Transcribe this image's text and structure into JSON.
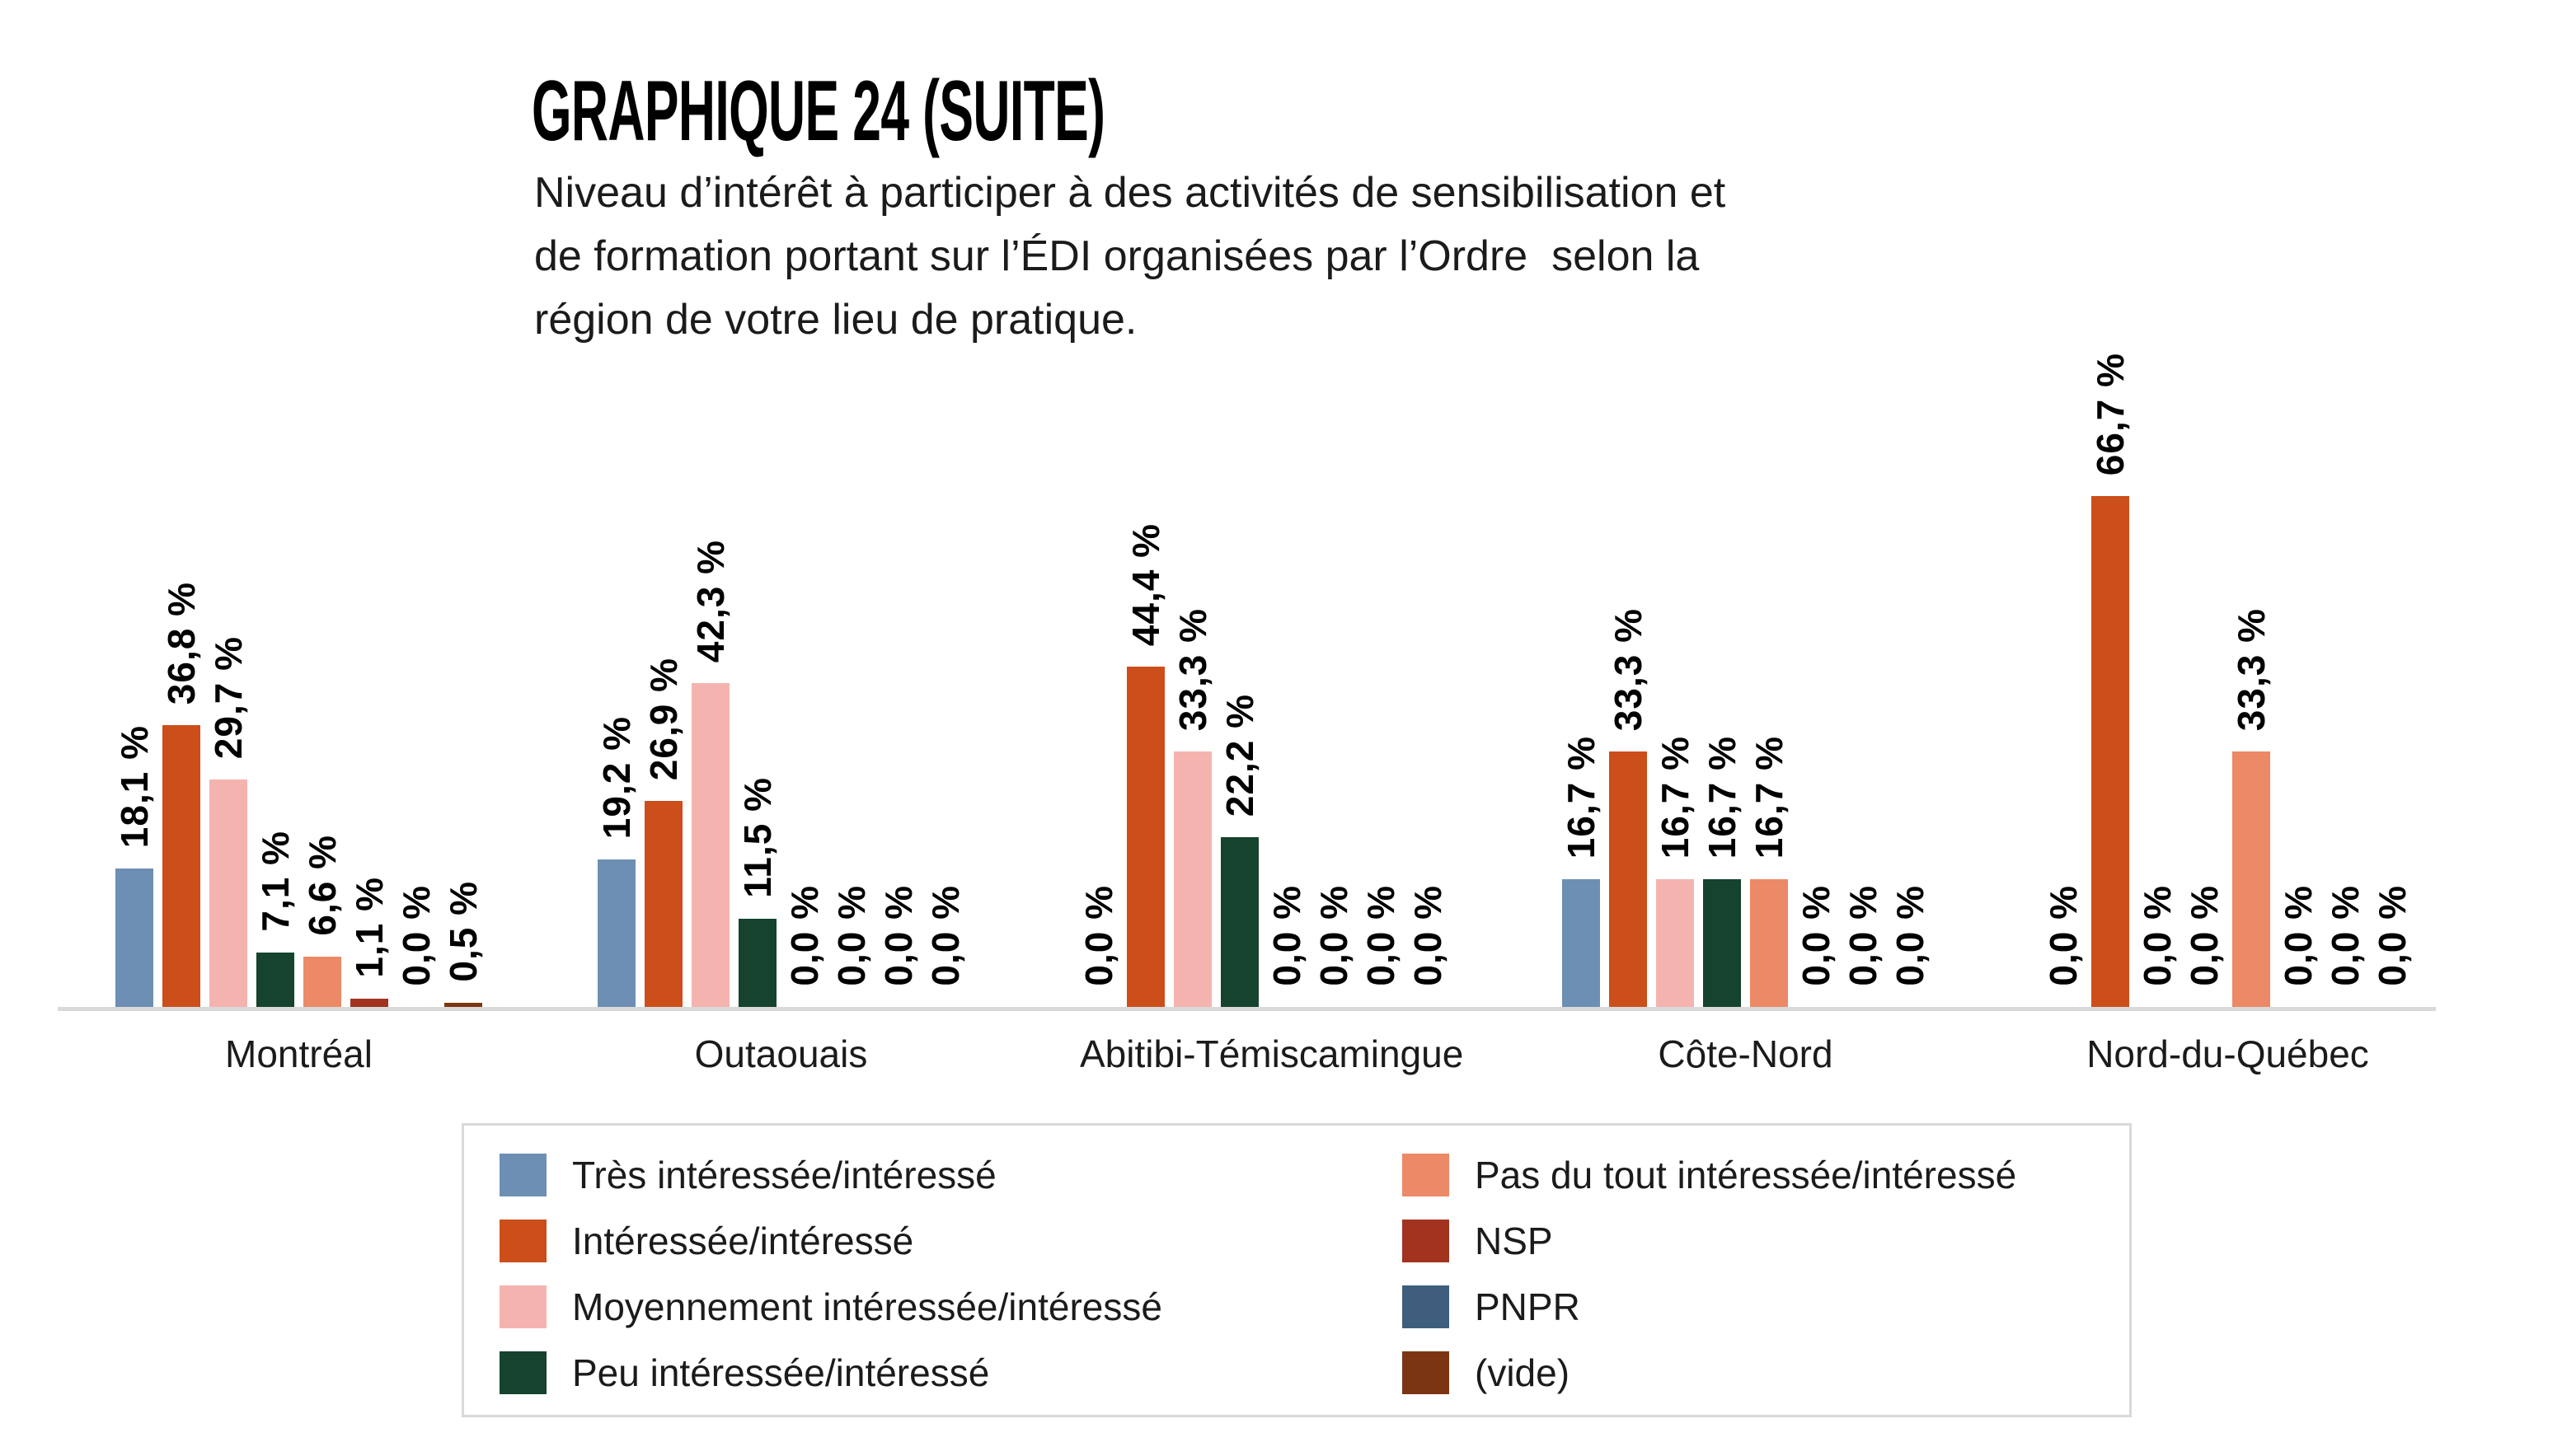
{
  "header": {
    "title": "GRAPHIQUE 24 (SUITE)",
    "subtitle_lines": [
      "Niveau d’intérêt à participer à des activités de sensibilisation et",
      "de formation portant sur l’ÉDI organisées par l’Ordre  selon la",
      "région de votre lieu de pratique."
    ]
  },
  "chart_data": {
    "type": "bar",
    "title": "GRAPHIQUE 24 (SUITE)",
    "subtitle": "Niveau d’intérêt à participer à des activités de sensibilisation et de formation portant sur l’ÉDI organisées par l’Ordre selon la région de votre lieu de pratique.",
    "categories": [
      "Montréal",
      "Outaouais",
      "Abitibi-Témiscamingue",
      "Côte-Nord",
      "Nord-du-Québec"
    ],
    "series": [
      {
        "name": "Très intéressée/intéressé",
        "color": "#6d8fb3",
        "values": [
          18.1,
          19.2,
          0.0,
          16.7,
          0.0
        ]
      },
      {
        "name": "Intéressée/intéressé",
        "color": "#cc4e1a",
        "values": [
          36.8,
          26.9,
          44.4,
          33.3,
          66.7
        ]
      },
      {
        "name": "Moyennement intéressée/intéressé",
        "color": "#f5b3b0",
        "values": [
          29.7,
          42.3,
          33.3,
          16.7,
          0.0
        ]
      },
      {
        "name": "Peu intéressée/intéressé",
        "color": "#15432e",
        "values": [
          7.1,
          11.5,
          22.2,
          16.7,
          0.0
        ]
      },
      {
        "name": "Pas du tout intéressée/intéressé",
        "color": "#ec8966",
        "values": [
          6.6,
          0.0,
          0.0,
          16.7,
          33.3
        ]
      },
      {
        "name": "NSP",
        "color": "#a1331f",
        "values": [
          1.1,
          0.0,
          0.0,
          0.0,
          0.0
        ]
      },
      {
        "name": "PNPR",
        "color": "#3f5e7d",
        "values": [
          0.0,
          0.0,
          0.0,
          0.0,
          0.0
        ]
      },
      {
        "name": "(vide)",
        "color": "#7c3513",
        "values": [
          0.5,
          0.0,
          0.0,
          0.0,
          0.0
        ]
      }
    ],
    "value_label_format": "0,0 %",
    "decimal_separator": ",",
    "value_label_suffix": " %",
    "ylim": [
      0,
      70
    ],
    "grid": false,
    "legend_position": "bottom",
    "axis_line_color": "#d9d9d9",
    "data_label_color": "#000000",
    "data_label_rotation": -90
  }
}
